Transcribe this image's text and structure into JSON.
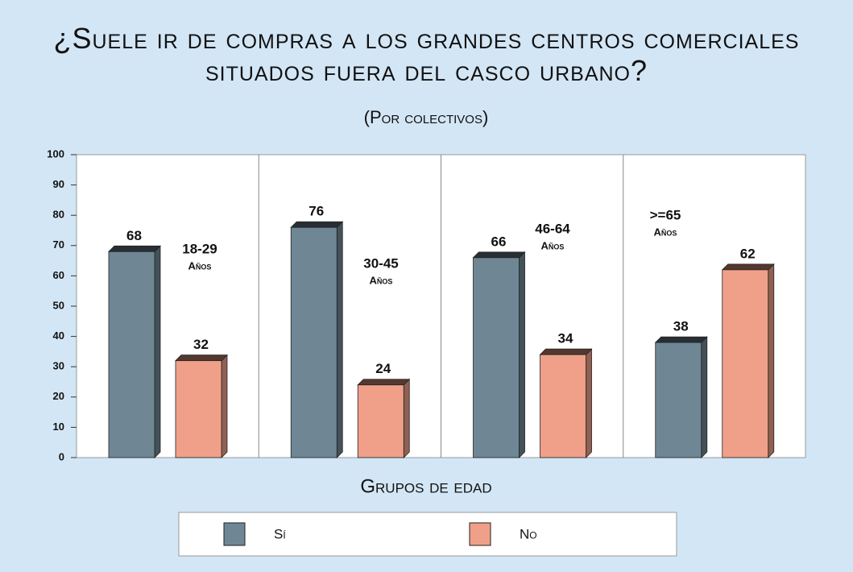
{
  "chart_data": {
    "type": "bar",
    "title": "¿Suele ir de compras a los grandes centros comerciales situados fuera del casco urbano?",
    "subtitle": "(Por colectivos)",
    "x_label": "Grupos de edad",
    "categories": [
      "18-29",
      "30-45",
      "46-64",
      ">=65"
    ],
    "category_unit": "Años",
    "series": [
      {
        "name": "Sí",
        "color": "#6f8794",
        "values": [
          68,
          76,
          66,
          38
        ]
      },
      {
        "name": "No",
        "color": "#f0a089",
        "values": [
          32,
          24,
          34,
          62
        ]
      }
    ],
    "ylim": [
      0,
      100
    ],
    "yticks": [
      0,
      10,
      20,
      30,
      40,
      50,
      60,
      70,
      80,
      90,
      100
    ],
    "legend": "bottom"
  }
}
